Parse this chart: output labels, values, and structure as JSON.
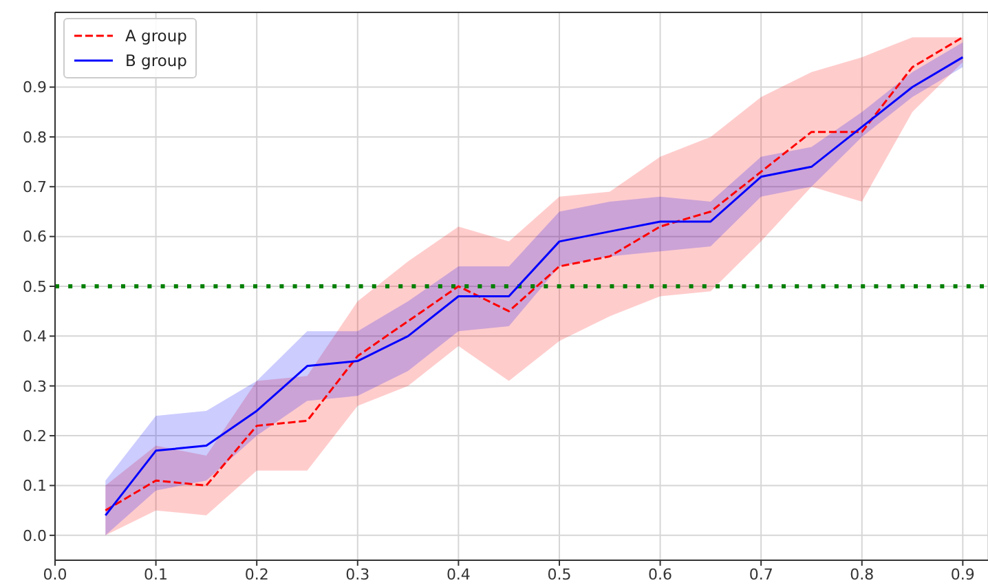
{
  "chart_data": {
    "type": "line",
    "x": [
      0.05,
      0.1,
      0.15,
      0.2,
      0.25,
      0.3,
      0.35,
      0.4,
      0.45,
      0.5,
      0.55,
      0.6,
      0.65,
      0.7,
      0.75,
      0.8,
      0.85,
      0.9
    ],
    "series": [
      {
        "name": "A group",
        "color": "#ff0000",
        "line_style": "dashed",
        "values": [
          0.05,
          0.11,
          0.1,
          0.22,
          0.23,
          0.36,
          0.43,
          0.5,
          0.45,
          0.54,
          0.56,
          0.62,
          0.65,
          0.73,
          0.81,
          0.81,
          0.94,
          1.0
        ],
        "lower": [
          0.0,
          0.05,
          0.04,
          0.13,
          0.13,
          0.26,
          0.3,
          0.38,
          0.31,
          0.39,
          0.44,
          0.48,
          0.49,
          0.59,
          0.7,
          0.67,
          0.85,
          0.95
        ],
        "upper": [
          0.1,
          0.18,
          0.16,
          0.31,
          0.32,
          0.47,
          0.55,
          0.62,
          0.59,
          0.68,
          0.69,
          0.76,
          0.8,
          0.88,
          0.93,
          0.96,
          1.0,
          1.0
        ]
      },
      {
        "name": "B group",
        "color": "#0000ff",
        "line_style": "solid",
        "values": [
          0.04,
          0.17,
          0.18,
          0.25,
          0.34,
          0.35,
          0.4,
          0.48,
          0.48,
          0.59,
          0.61,
          0.63,
          0.63,
          0.72,
          0.74,
          0.82,
          0.9,
          0.96
        ],
        "lower": [
          0.0,
          0.09,
          0.11,
          0.2,
          0.27,
          0.28,
          0.33,
          0.41,
          0.42,
          0.54,
          0.56,
          0.57,
          0.58,
          0.68,
          0.7,
          0.8,
          0.88,
          0.94
        ],
        "upper": [
          0.11,
          0.24,
          0.25,
          0.31,
          0.41,
          0.41,
          0.47,
          0.54,
          0.54,
          0.65,
          0.67,
          0.68,
          0.67,
          0.76,
          0.78,
          0.85,
          0.93,
          0.99
        ]
      }
    ],
    "xlim": [
      0,
      0.925
    ],
    "ylim": [
      -0.05,
      1.05
    ],
    "xticks": [
      {
        "value": 0,
        "label": "0.0"
      },
      0.1,
      0.2,
      0.3,
      0.4,
      0.5,
      0.6,
      0.7,
      0.8,
      0.9
    ],
    "yticks": [
      {
        "value": 0,
        "label": "0.0"
      },
      0.1,
      0.2,
      0.3,
      0.4,
      0.5,
      0.6,
      0.7,
      0.8,
      0.9
    ],
    "grid": true,
    "legend": "top left",
    "ref_lines": [
      {
        "axis": "y",
        "value": 0.5,
        "color": "#008000",
        "line_style": "dotted"
      }
    ]
  }
}
